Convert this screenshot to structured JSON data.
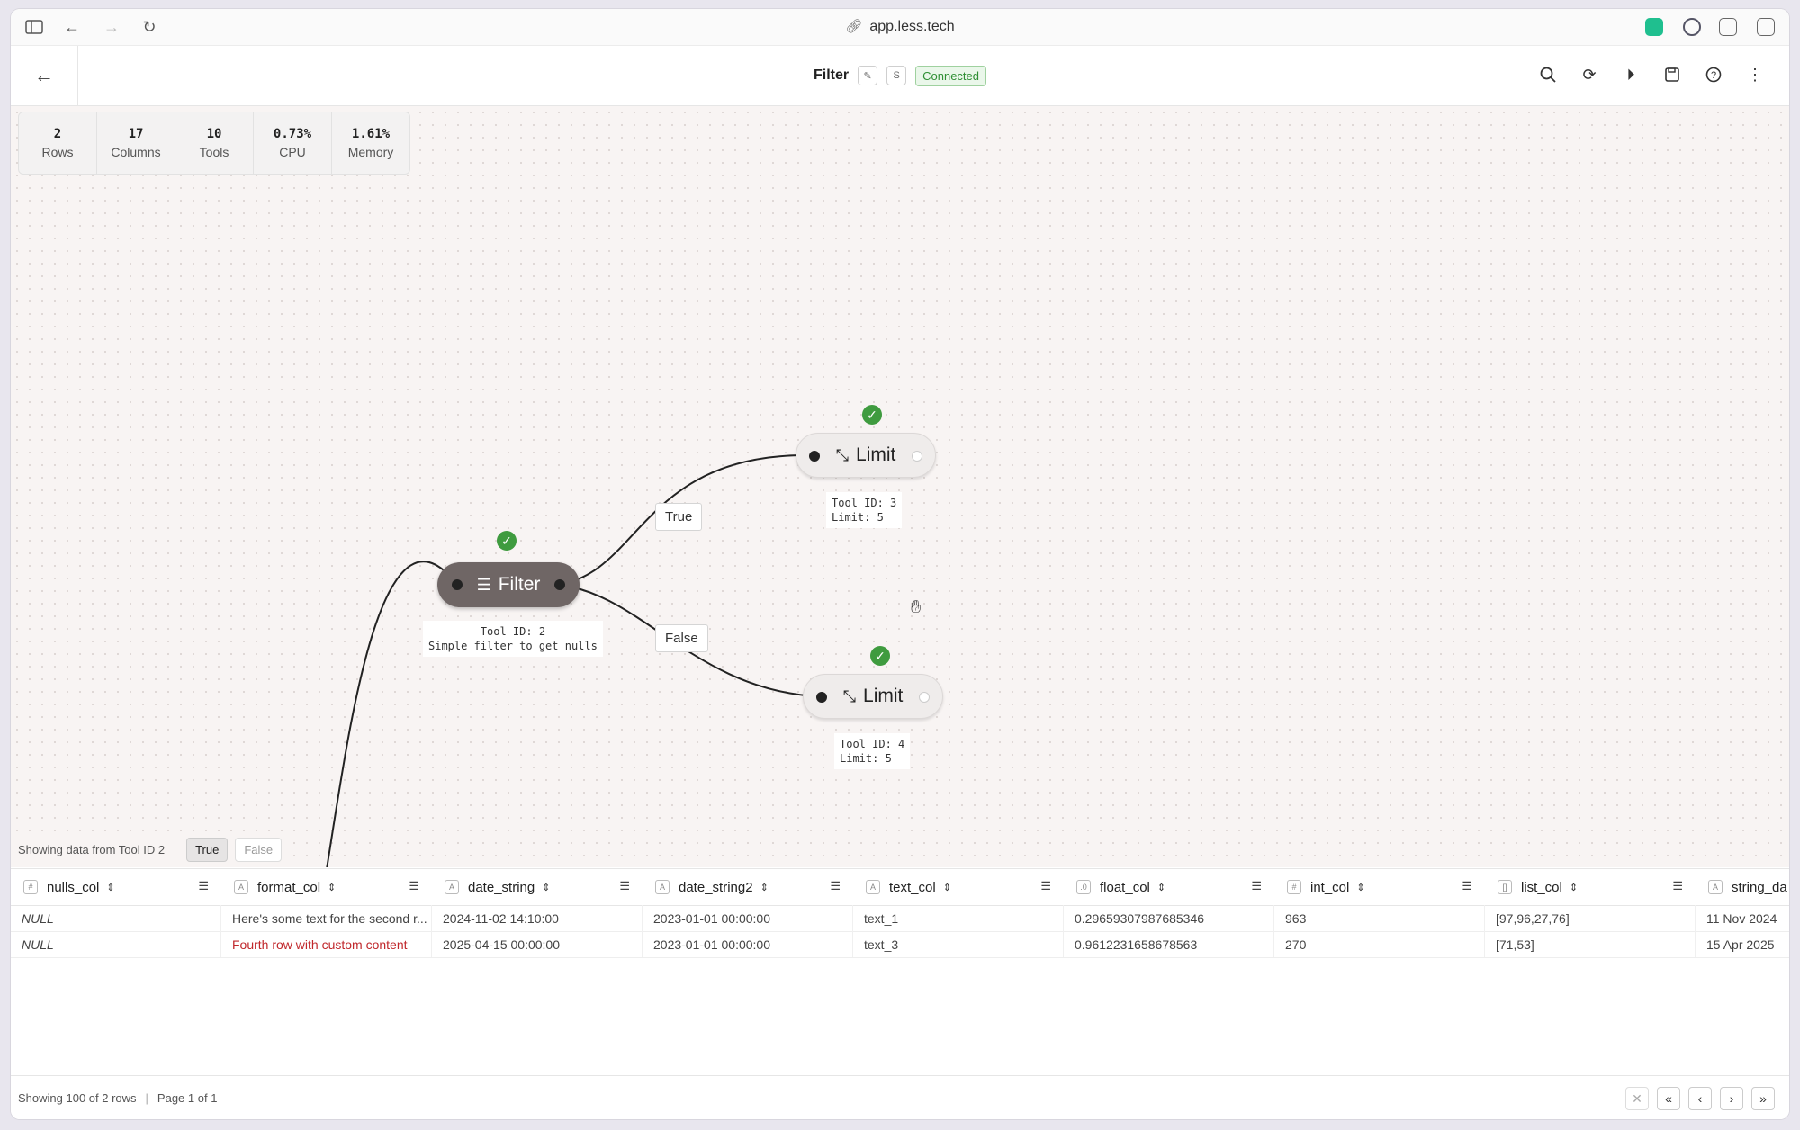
{
  "browser": {
    "url": "app.less.tech"
  },
  "header": {
    "title": "Filter",
    "mini_label": "S",
    "status": "Connected"
  },
  "stats": [
    {
      "value": "2",
      "label": "Rows"
    },
    {
      "value": "17",
      "label": "Columns"
    },
    {
      "value": "10",
      "label": "Tools"
    },
    {
      "value": "0.73%",
      "label": "CPU"
    },
    {
      "value": "1.61%",
      "label": "Memory"
    }
  ],
  "nodes": {
    "filter": {
      "name": "Filter",
      "line1": "Tool ID: 2",
      "line2": "Simple filter to get nulls"
    },
    "limit_top": {
      "name": "Limit",
      "line1": "Tool ID: 3",
      "line2": "Limit: 5"
    },
    "limit_bottom": {
      "name": "Limit",
      "line1": "Tool ID: 4",
      "line2": "Limit: 5"
    }
  },
  "edges": {
    "true_label": "True",
    "false_label": "False"
  },
  "data_source": {
    "text": "Showing data from Tool ID 2",
    "true_btn": "True",
    "false_btn": "False"
  },
  "table": {
    "columns": [
      {
        "name": "nulls_col",
        "type_icon": "int"
      },
      {
        "name": "format_col",
        "type_icon": "text"
      },
      {
        "name": "date_string",
        "type_icon": "text"
      },
      {
        "name": "date_string2",
        "type_icon": "text"
      },
      {
        "name": "text_col",
        "type_icon": "text"
      },
      {
        "name": "float_col",
        "type_icon": "float"
      },
      {
        "name": "int_col",
        "type_icon": "int"
      },
      {
        "name": "list_col",
        "type_icon": "list"
      },
      {
        "name": "string_da",
        "type_icon": "text"
      }
    ],
    "rows": [
      [
        "NULL",
        "Here's some text for the second r...",
        "2024-11-02 14:10:00",
        "2023-01-01 00:00:00",
        "text_1",
        "0.29659307987685346",
        "963",
        "[97,96,27,76]",
        "11 Nov 2024"
      ],
      [
        "NULL",
        "Fourth row with custom content",
        "2025-04-15 00:00:00",
        "2023-01-01 00:00:00",
        "text_3",
        "0.9612231658678563",
        "270",
        "[71,53]",
        "15 Apr 2025"
      ]
    ]
  },
  "footer": {
    "showing": "Showing 100 of 2 rows",
    "page": "Page 1 of 1"
  },
  "colors": {
    "accent_green": "#3f9b3f",
    "filter_node": "#6f6665",
    "highlight_red": "#c0282c"
  }
}
